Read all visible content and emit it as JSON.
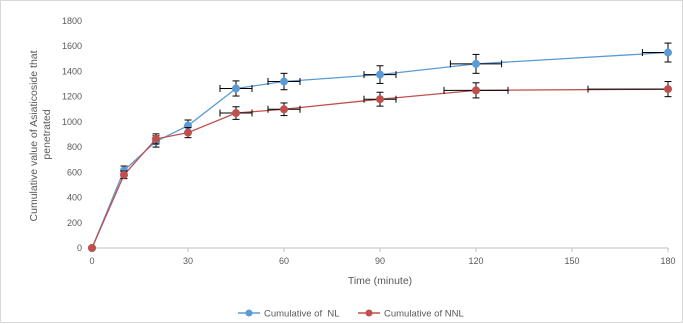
{
  "chart_data": {
    "type": "line",
    "xlabel": "Time (minute)",
    "ylabel": "Cumulative value of Asiaticoside that penetrated",
    "ylabel_lines": [
      "Cumulative value of Asiaticoside that",
      "penetrated"
    ],
    "xlim": [
      0,
      180
    ],
    "ylim": [
      0,
      1800
    ],
    "x_ticks": [
      0,
      30,
      60,
      90,
      120,
      150,
      180
    ],
    "x_tick_labels": [
      "0",
      "30",
      "60",
      "90",
      "120",
      "150",
      "180"
    ],
    "y_ticks": [
      0,
      200,
      400,
      600,
      800,
      1000,
      1200,
      1400,
      1600,
      1800
    ],
    "y_tick_labels": [
      "0",
      "200",
      "400",
      "600",
      "800",
      "1000",
      "1200",
      "1400",
      "1600",
      "1800"
    ],
    "grid": false,
    "legend_position": "bottom",
    "series": [
      {
        "name": "Cumulative of  NL",
        "color": "#5b9bd5",
        "x": [
          0,
          10,
          20,
          30,
          45,
          60,
          90,
          120,
          180
        ],
        "y": [
          0,
          615,
          845,
          970,
          1265,
          1320,
          1375,
          1460,
          1550
        ],
        "y_err": [
          0,
          35,
          45,
          45,
          60,
          65,
          70,
          75,
          75
        ],
        "x_err": [
          0,
          0,
          0,
          0,
          5,
          5,
          5,
          8,
          8
        ]
      },
      {
        "name": "Cumulative of NNL",
        "color": "#c0504d",
        "x": [
          0,
          10,
          20,
          30,
          45,
          60,
          90,
          120,
          180
        ],
        "y": [
          0,
          580,
          865,
          915,
          1070,
          1100,
          1180,
          1250,
          1260
        ],
        "y_err": [
          0,
          30,
          40,
          40,
          50,
          50,
          55,
          60,
          60
        ],
        "x_err": [
          0,
          0,
          0,
          0,
          5,
          5,
          5,
          10,
          25
        ]
      }
    ]
  }
}
